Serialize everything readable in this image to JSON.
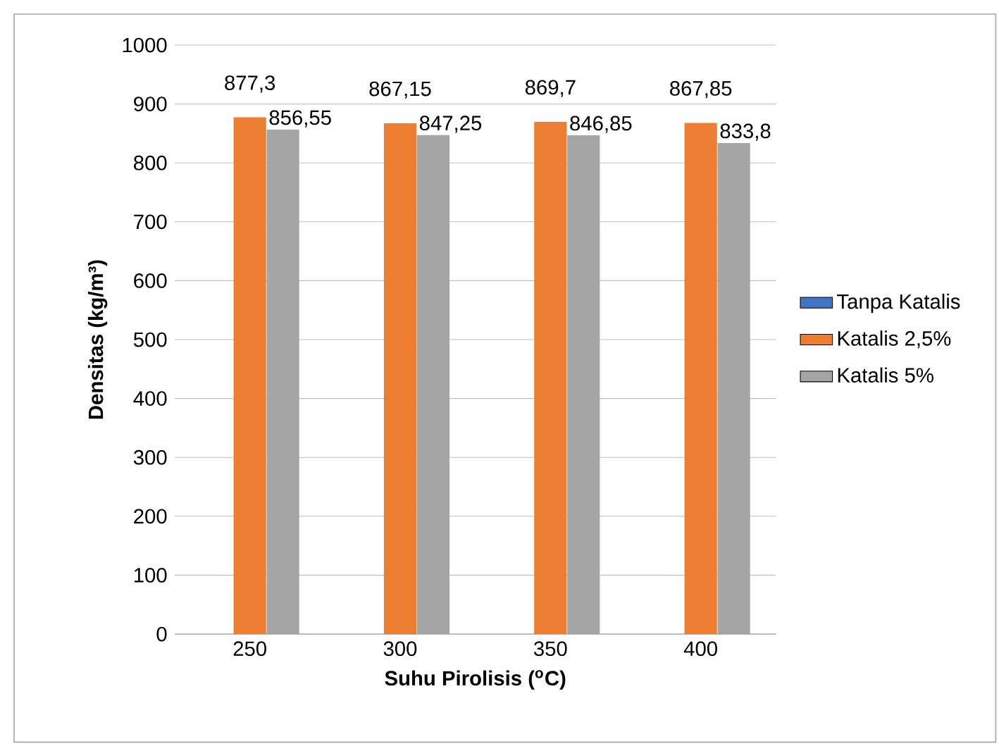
{
  "chart_data": {
    "type": "bar",
    "xlabel": "Suhu Pirolisis ($^{o}$C)",
    "ylabel": "Densitas (kg/m³)",
    "categories": [
      "250",
      "300",
      "350",
      "400"
    ],
    "series": [
      {
        "name": "Tanpa Katalis",
        "color": "#4472c4",
        "values": [
          null,
          null,
          null,
          null
        ]
      },
      {
        "name": "Katalis 2,5%",
        "color": "#ed7d31",
        "values": [
          877.3,
          867.15,
          869.7,
          867.85
        ],
        "value_labels": [
          "877,3",
          "867,15",
          "869,7",
          "867,85"
        ]
      },
      {
        "name": "Katalis 5%",
        "color": "#a5a5a5",
        "values": [
          856.55,
          847.25,
          846.85,
          833.8
        ],
        "value_labels": [
          "856,55",
          "847,25",
          "846,85",
          "833,8"
        ]
      }
    ],
    "ylim": [
      0,
      1000
    ],
    "yticks": [
      0,
      100,
      200,
      300,
      400,
      500,
      600,
      700,
      800,
      900,
      1000
    ],
    "grid": "y",
    "legend": "right"
  }
}
